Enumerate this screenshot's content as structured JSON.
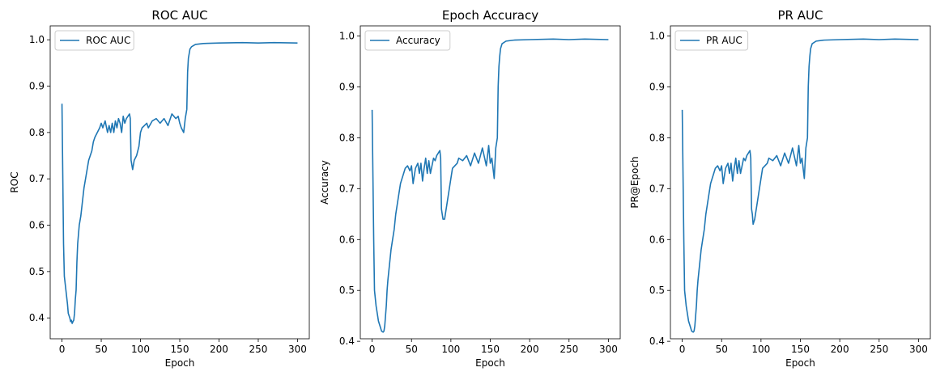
{
  "chart_data": [
    {
      "type": "line",
      "title": "ROC AUC",
      "xlabel": "Epoch",
      "ylabel": "ROC",
      "xlim": [
        -15,
        315
      ],
      "ylim": [
        0.355,
        1.03
      ],
      "xticks": [
        0,
        50,
        100,
        150,
        200,
        250,
        300
      ],
      "yticks": [
        0.4,
        0.5,
        0.6,
        0.7,
        0.8,
        0.9,
        1.0
      ],
      "ytick_labels": [
        "0.4",
        "0.5",
        "0.6",
        "0.7",
        "0.8",
        "0.9",
        "1.0"
      ],
      "legend_position": "top-left",
      "color": "#1f77b4",
      "series": [
        {
          "name": "ROC AUC",
          "x": [
            0,
            2,
            3,
            5,
            7,
            8,
            10,
            11,
            12,
            13,
            14,
            15,
            16,
            17,
            18,
            19,
            20,
            22,
            24,
            26,
            28,
            30,
            32,
            34,
            36,
            38,
            40,
            42,
            45,
            48,
            50,
            52,
            55,
            58,
            60,
            62,
            64,
            66,
            68,
            70,
            72,
            74,
            76,
            78,
            80,
            82,
            84,
            86,
            87,
            88,
            89,
            90,
            92,
            95,
            98,
            100,
            102,
            105,
            108,
            110,
            115,
            120,
            125,
            130,
            135,
            140,
            145,
            148,
            150,
            152,
            155,
            157,
            158,
            159,
            160,
            161,
            162,
            163,
            165,
            170,
            180,
            200,
            230,
            250,
            270,
            300
          ],
          "y": [
            0.862,
            0.56,
            0.49,
            0.46,
            0.43,
            0.41,
            0.4,
            0.392,
            0.395,
            0.388,
            0.392,
            0.395,
            0.41,
            0.44,
            0.46,
            0.52,
            0.56,
            0.6,
            0.62,
            0.65,
            0.68,
            0.7,
            0.72,
            0.74,
            0.75,
            0.76,
            0.78,
            0.79,
            0.8,
            0.81,
            0.82,
            0.81,
            0.825,
            0.8,
            0.815,
            0.8,
            0.82,
            0.8,
            0.825,
            0.81,
            0.83,
            0.82,
            0.8,
            0.835,
            0.82,
            0.83,
            0.835,
            0.84,
            0.83,
            0.74,
            0.73,
            0.72,
            0.74,
            0.75,
            0.77,
            0.8,
            0.81,
            0.815,
            0.82,
            0.81,
            0.825,
            0.83,
            0.82,
            0.83,
            0.815,
            0.84,
            0.83,
            0.835,
            0.82,
            0.81,
            0.8,
            0.83,
            0.84,
            0.85,
            0.93,
            0.96,
            0.97,
            0.98,
            0.985,
            0.99,
            0.992,
            0.993,
            0.994,
            0.993,
            0.994,
            0.993
          ]
        }
      ]
    },
    {
      "type": "line",
      "title": "Epoch Accuracy",
      "xlabel": "Epoch",
      "ylabel": "Accuracy",
      "xlim": [
        -15,
        315
      ],
      "ylim": [
        0.405,
        1.02
      ],
      "xticks": [
        0,
        50,
        100,
        150,
        200,
        250,
        300
      ],
      "yticks": [
        0.4,
        0.5,
        0.6,
        0.7,
        0.8,
        0.9,
        1.0
      ],
      "ytick_labels": [
        "0.4",
        "0.5",
        "0.6",
        "0.7",
        "0.8",
        "0.9",
        "1.0"
      ],
      "legend_position": "top-left",
      "color": "#1f77b4",
      "series": [
        {
          "name": "Accuracy",
          "x": [
            0,
            2,
            3,
            5,
            7,
            8,
            10,
            12,
            14,
            15,
            16,
            17,
            18,
            19,
            20,
            22,
            24,
            26,
            28,
            30,
            32,
            34,
            36,
            38,
            40,
            42,
            45,
            48,
            50,
            52,
            55,
            58,
            60,
            62,
            64,
            66,
            68,
            70,
            72,
            74,
            76,
            78,
            80,
            82,
            84,
            86,
            87,
            88,
            89,
            90,
            92,
            95,
            98,
            100,
            102,
            105,
            108,
            110,
            115,
            120,
            125,
            130,
            135,
            140,
            145,
            148,
            150,
            152,
            155,
            157,
            158,
            159,
            160,
            161,
            162,
            163,
            165,
            170,
            180,
            200,
            230,
            250,
            270,
            300
          ],
          "y": [
            0.855,
            0.6,
            0.5,
            0.47,
            0.45,
            0.44,
            0.43,
            0.42,
            0.418,
            0.42,
            0.43,
            0.45,
            0.47,
            0.5,
            0.52,
            0.55,
            0.58,
            0.6,
            0.62,
            0.65,
            0.67,
            0.69,
            0.71,
            0.72,
            0.73,
            0.74,
            0.745,
            0.735,
            0.745,
            0.71,
            0.74,
            0.75,
            0.73,
            0.75,
            0.715,
            0.74,
            0.76,
            0.73,
            0.755,
            0.73,
            0.745,
            0.76,
            0.755,
            0.765,
            0.77,
            0.775,
            0.76,
            0.66,
            0.65,
            0.64,
            0.64,
            0.67,
            0.7,
            0.72,
            0.74,
            0.745,
            0.75,
            0.76,
            0.755,
            0.765,
            0.745,
            0.77,
            0.75,
            0.78,
            0.745,
            0.785,
            0.75,
            0.76,
            0.72,
            0.78,
            0.79,
            0.8,
            0.9,
            0.94,
            0.96,
            0.975,
            0.985,
            0.99,
            0.992,
            0.993,
            0.994,
            0.993,
            0.994,
            0.993
          ]
        }
      ]
    },
    {
      "type": "line",
      "title": "PR AUC",
      "xlabel": "Epoch",
      "ylabel": "PR@Epoch",
      "xlim": [
        -15,
        315
      ],
      "ylim": [
        0.405,
        1.02
      ],
      "xticks": [
        0,
        50,
        100,
        150,
        200,
        250,
        300
      ],
      "yticks": [
        0.4,
        0.5,
        0.6,
        0.7,
        0.8,
        0.9,
        1.0
      ],
      "ytick_labels": [
        "0.4",
        "0.5",
        "0.6",
        "0.7",
        "0.8",
        "0.9",
        "1.0"
      ],
      "legend_position": "top-left",
      "color": "#1f77b4",
      "series": [
        {
          "name": "PR AUC",
          "x": [
            0,
            2,
            3,
            5,
            7,
            8,
            10,
            12,
            14,
            15,
            16,
            17,
            18,
            19,
            20,
            22,
            24,
            26,
            28,
            30,
            32,
            34,
            36,
            38,
            40,
            42,
            45,
            48,
            50,
            52,
            55,
            58,
            60,
            62,
            64,
            66,
            68,
            70,
            72,
            74,
            76,
            78,
            80,
            82,
            84,
            86,
            87,
            88,
            89,
            90,
            92,
            95,
            98,
            100,
            102,
            105,
            108,
            110,
            115,
            120,
            125,
            130,
            135,
            140,
            145,
            148,
            150,
            152,
            155,
            157,
            158,
            159,
            160,
            161,
            162,
            163,
            165,
            170,
            180,
            200,
            230,
            250,
            270,
            300
          ],
          "y": [
            0.855,
            0.6,
            0.5,
            0.47,
            0.45,
            0.44,
            0.43,
            0.42,
            0.418,
            0.42,
            0.43,
            0.45,
            0.47,
            0.5,
            0.52,
            0.55,
            0.58,
            0.6,
            0.62,
            0.65,
            0.67,
            0.69,
            0.71,
            0.72,
            0.73,
            0.74,
            0.745,
            0.735,
            0.745,
            0.71,
            0.74,
            0.75,
            0.73,
            0.75,
            0.715,
            0.74,
            0.76,
            0.73,
            0.755,
            0.73,
            0.745,
            0.76,
            0.755,
            0.765,
            0.77,
            0.775,
            0.76,
            0.66,
            0.65,
            0.63,
            0.64,
            0.67,
            0.7,
            0.72,
            0.74,
            0.745,
            0.75,
            0.76,
            0.755,
            0.765,
            0.745,
            0.77,
            0.75,
            0.78,
            0.745,
            0.785,
            0.75,
            0.76,
            0.72,
            0.78,
            0.79,
            0.8,
            0.9,
            0.94,
            0.96,
            0.975,
            0.985,
            0.99,
            0.992,
            0.993,
            0.994,
            0.993,
            0.994,
            0.993
          ]
        }
      ]
    }
  ]
}
